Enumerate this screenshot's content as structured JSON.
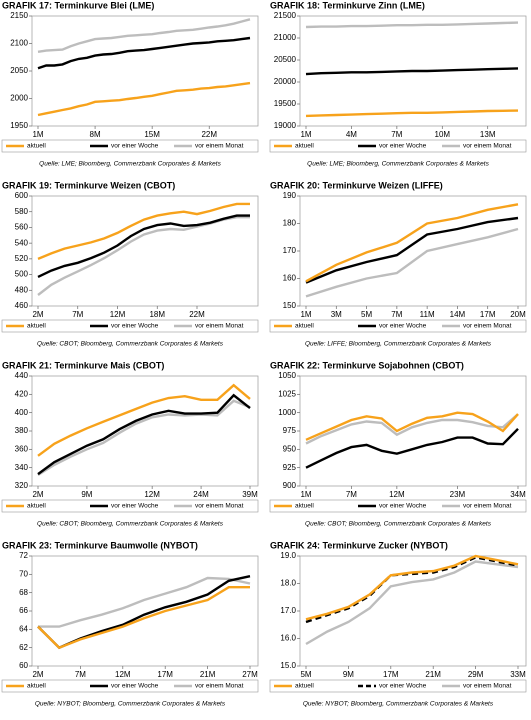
{
  "chart_data": [
    {
      "type": "line",
      "title": "GRAFIK 17: Terminkurve Blei (LME)",
      "source": "Quelle: LME; Bloomberg, Commerzbank Corporates & Markets",
      "categories": [
        "1M",
        null,
        null,
        null,
        null,
        null,
        null,
        "8M",
        null,
        null,
        null,
        null,
        null,
        null,
        "15M",
        null,
        null,
        null,
        null,
        null,
        null,
        "22M",
        null,
        null,
        null,
        null,
        null
      ],
      "series": [
        {
          "name": "aktuell",
          "color": "#f7a21b",
          "values": [
            1970,
            1973,
            1976,
            1979,
            1982,
            1986,
            1989,
            1994,
            1995,
            1996,
            1997,
            1999,
            2001,
            2003,
            2005,
            2008,
            2011,
            2014,
            2015,
            2016,
            2018,
            2019,
            2021,
            2022,
            2024,
            2026,
            2028
          ]
        },
        {
          "name": "vor einer Woche",
          "color": "#000000",
          "values": [
            2055,
            2060,
            2060,
            2062,
            2068,
            2072,
            2074,
            2078,
            2080,
            2081,
            2083,
            2086,
            2087,
            2088,
            2090,
            2092,
            2094,
            2096,
            2098,
            2100,
            2101,
            2102,
            2104,
            2105,
            2106,
            2108,
            2110
          ]
        },
        {
          "name": "vor einem Monat",
          "color": "#bdbdbd",
          "values": [
            2085,
            2087,
            2088,
            2089,
            2095,
            2100,
            2104,
            2108,
            2109,
            2110,
            2112,
            2114,
            2115,
            2116,
            2117,
            2119,
            2121,
            2123,
            2124,
            2125,
            2127,
            2129,
            2131,
            2133,
            2136,
            2140,
            2144
          ]
        }
      ],
      "ylim": [
        1950,
        2150
      ],
      "yticks": [
        1950,
        2000,
        2050,
        2100,
        2150
      ]
    },
    {
      "type": "line",
      "title": "GRAFIK 18: Terminkurve Zinn (LME)",
      "source": "Quelle: LME; Bloomberg, Commerzbank Corporates & Markets",
      "categories": [
        "1M",
        null,
        null,
        "4M",
        null,
        null,
        "7M",
        null,
        null,
        "10M",
        null,
        null,
        "13M",
        null,
        null
      ],
      "series": [
        {
          "name": "aktuell",
          "color": "#f7a21b",
          "values": [
            19230,
            19240,
            19250,
            19260,
            19270,
            19280,
            19290,
            19300,
            19300,
            19310,
            19320,
            19330,
            19340,
            19345,
            19350
          ]
        },
        {
          "name": "vor einer Woche",
          "color": "#000000",
          "values": [
            20180,
            20200,
            20210,
            20220,
            20220,
            20230,
            20240,
            20250,
            20250,
            20260,
            20270,
            20280,
            20290,
            20300,
            20310
          ]
        },
        {
          "name": "vor einem Monat",
          "color": "#bdbdbd",
          "values": [
            21250,
            21260,
            21260,
            21270,
            21270,
            21280,
            21290,
            21290,
            21300,
            21300,
            21310,
            21320,
            21330,
            21340,
            21350
          ]
        }
      ],
      "ylim": [
        19000,
        21500
      ],
      "yticks": [
        19000,
        19500,
        20000,
        20500,
        21000,
        21500
      ]
    },
    {
      "type": "line",
      "title": "GRAFIK 19: Terminkurve Weizen (CBOT)",
      "source": "Quelle: CBOT; Bloomberg, Commerzbank Corporates & Markets",
      "categories": [
        "2M",
        null,
        null,
        "7M",
        null,
        null,
        "12M",
        null,
        null,
        "18M",
        null,
        null,
        "22M",
        null,
        null,
        null,
        null
      ],
      "series": [
        {
          "name": "aktuell",
          "color": "#f7a21b",
          "values": [
            520,
            527,
            533,
            537,
            541,
            546,
            553,
            562,
            570,
            575,
            578,
            580,
            577,
            581,
            586,
            590,
            590
          ]
        },
        {
          "name": "vor einer Woche",
          "color": "#000000",
          "values": [
            497,
            505,
            511,
            515,
            521,
            528,
            537,
            549,
            558,
            563,
            565,
            562,
            563,
            566,
            571,
            575,
            575
          ]
        },
        {
          "name": "vor einem Monat",
          "color": "#bdbdbd",
          "values": [
            474,
            487,
            496,
            504,
            512,
            521,
            531,
            542,
            551,
            556,
            558,
            557,
            561,
            565,
            570,
            573,
            573
          ]
        }
      ],
      "ylim": [
        460,
        600
      ],
      "yticks": [
        460,
        480,
        500,
        520,
        540,
        560,
        580,
        600
      ]
    },
    {
      "type": "line",
      "title": "GRAFIK 20: Terminkurve Weizen (LIFFE)",
      "source": "Quelle: LIFFE; Bloomberg, Commerzbank Corporates & Markets",
      "categories": [
        "1M",
        "3M",
        "5M",
        "7M",
        "11M",
        "14M",
        "17M",
        "20M"
      ],
      "series": [
        {
          "name": "aktuell",
          "color": "#f7a21b",
          "values": [
            159,
            165,
            169.5,
            173,
            180,
            182,
            185,
            187
          ]
        },
        {
          "name": "vor einer Woche",
          "color": "#000000",
          "values": [
            158.5,
            163,
            166,
            168.5,
            176,
            178,
            180.5,
            182
          ]
        },
        {
          "name": "vor einem Monat",
          "color": "#bdbdbd",
          "values": [
            153.5,
            157,
            160,
            162,
            170,
            172.5,
            175,
            178
          ]
        }
      ],
      "ylim": [
        150,
        190
      ],
      "yticks": [
        150,
        160,
        170,
        180,
        190
      ]
    },
    {
      "type": "line",
      "title": "GRAFIK 21: Terminkurve Mais (CBOT)",
      "source": "Quelle: CBOT; Bloomberg, Commerzbank Corporates & Markets",
      "categories": [
        "2M",
        null,
        null,
        "9M",
        null,
        null,
        null,
        "12M",
        null,
        null,
        "24M",
        null,
        null,
        "39M"
      ],
      "series": [
        {
          "name": "aktuell",
          "color": "#f7a21b",
          "values": [
            353,
            366,
            375,
            383,
            390,
            397,
            404,
            411,
            416,
            418,
            414,
            414,
            430,
            415
          ]
        },
        {
          "name": "vor einer Woche",
          "color": "#000000",
          "values": [
            333,
            346,
            355,
            364,
            371,
            382,
            391,
            398,
            402,
            399,
            399,
            400,
            419,
            405
          ]
        },
        {
          "name": "vor einem Monat",
          "color": "#bdbdbd",
          "values": [
            332,
            343,
            352,
            360,
            367,
            378,
            388,
            395,
            398,
            397,
            398,
            397,
            413,
            406
          ]
        }
      ],
      "ylim": [
        320,
        440
      ],
      "yticks": [
        320,
        340,
        360,
        380,
        400,
        420,
        440
      ]
    },
    {
      "type": "line",
      "title": "GRAFIK 22: Terminkurve Sojabohnen (CBOT)",
      "source": "Quelle: CBOT; Bloomberg, Commerzbank Corporates & Markets",
      "categories": [
        "1M",
        null,
        null,
        "7M",
        null,
        null,
        "12M",
        null,
        null,
        null,
        "23M",
        null,
        null,
        null,
        "34M"
      ],
      "series": [
        {
          "name": "aktuell",
          "color": "#f7a21b",
          "values": [
            963,
            972,
            981,
            990,
            995,
            992,
            975,
            985,
            993,
            995,
            1000,
            998,
            988,
            975,
            998
          ]
        },
        {
          "name": "vor einer Woche",
          "color": "#000000",
          "values": [
            925,
            935,
            945,
            953,
            956,
            948,
            944,
            950,
            956,
            960,
            966,
            966,
            958,
            957,
            978
          ]
        },
        {
          "name": "vor einem Monat",
          "color": "#bdbdbd",
          "values": [
            958,
            968,
            976,
            984,
            988,
            986,
            970,
            980,
            986,
            990,
            990,
            987,
            982,
            980,
            998
          ]
        }
      ],
      "ylim": [
        900,
        1050
      ],
      "yticks": [
        900,
        925,
        950,
        975,
        1000,
        1025,
        1050
      ]
    },
    {
      "type": "line",
      "title": "GRAFIK 23: Terminkurve Baumwolle (NYBOT)",
      "source": "Quelle: NYBOT; Bloomberg, Commerzbank Corporates & Markets",
      "categories": [
        "2M",
        null,
        "7M",
        null,
        "12M",
        null,
        "17M",
        null,
        "21M",
        null,
        "27M"
      ],
      "series": [
        {
          "name": "aktuell",
          "color": "#f7a21b",
          "values": [
            64.3,
            62.0,
            62.9,
            63.6,
            64.3,
            65.2,
            66.0,
            66.6,
            67.2,
            68.6,
            68.6
          ]
        },
        {
          "name": "vor einer Woche",
          "color": "#000000",
          "values": [
            64.3,
            62.0,
            63.0,
            63.8,
            64.5,
            65.6,
            66.4,
            67.0,
            67.8,
            69.3,
            69.8
          ]
        },
        {
          "name": "vor einem Monat",
          "color": "#bdbdbd",
          "values": [
            64.3,
            64.3,
            65.0,
            65.6,
            66.3,
            67.2,
            67.9,
            68.6,
            69.6,
            69.5,
            69.0
          ]
        }
      ],
      "ylim": [
        60,
        72
      ],
      "yticks": [
        60,
        62,
        64,
        66,
        68,
        70,
        72
      ]
    },
    {
      "type": "line",
      "title": "GRAFIK 24: Terminkurve Zucker (NYBOT)",
      "source": "Quelle: NYBOT; Bloomberg, Commerzbank Corporates & Markets",
      "categories": [
        "5M",
        null,
        "9M",
        null,
        "17M",
        null,
        "21M",
        null,
        "29M",
        null,
        "33M"
      ],
      "series": [
        {
          "name": "aktuell",
          "color": "#f7a21b",
          "values": [
            16.7,
            16.9,
            17.15,
            17.6,
            18.3,
            18.4,
            18.45,
            18.65,
            19.0,
            18.85,
            18.7
          ]
        },
        {
          "name": "vor einer Woche",
          "color": "#000000",
          "dash": true,
          "values": [
            16.6,
            16.85,
            17.1,
            17.55,
            18.3,
            18.35,
            18.4,
            18.6,
            18.95,
            18.8,
            18.65
          ]
        },
        {
          "name": "vor einem Monat",
          "color": "#bdbdbd",
          "values": [
            15.8,
            16.25,
            16.6,
            17.1,
            17.9,
            18.05,
            18.15,
            18.4,
            18.8,
            18.7,
            18.6
          ]
        }
      ],
      "ylim": [
        15,
        19
      ],
      "yticks": [
        {
          "value": 15,
          "label": "15.0"
        },
        {
          "value": 16,
          "label": "16.0"
        },
        {
          "value": 17,
          "label": "17.0"
        },
        {
          "value": 18,
          "label": "18.0"
        },
        {
          "value": 19,
          "label": "19.0"
        }
      ]
    }
  ]
}
